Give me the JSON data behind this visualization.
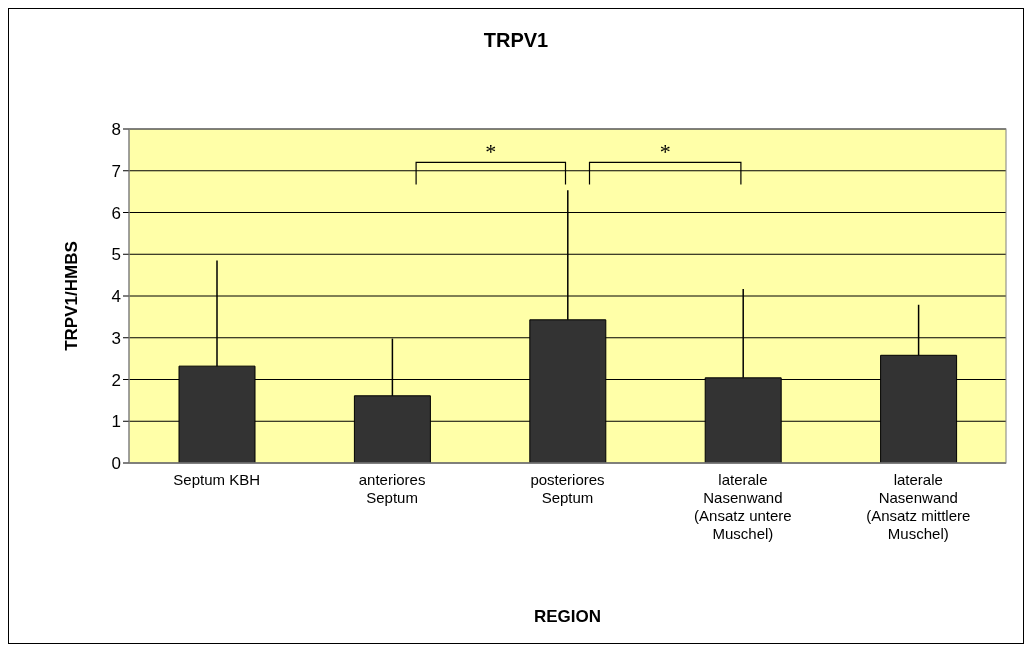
{
  "chart_data": {
    "type": "bar",
    "title": "TRPV1",
    "xlabel": "REGION",
    "ylabel": "TRPV1/HMBS",
    "categories": [
      "Septum KBH",
      "anteriores Septum",
      "posteriores Septum",
      "laterale Nasenwand (Ansatz untere Muschel)",
      "laterale Nasenwand (Ansatz mittlere Muschel)"
    ],
    "values": [
      2.32,
      1.61,
      3.43,
      2.04,
      2.58
    ],
    "errors": [
      [
        2.32,
        4.85
      ],
      [
        1.61,
        2.98
      ],
      [
        3.43,
        6.53
      ],
      [
        2.04,
        4.17
      ],
      [
        2.58,
        3.79
      ]
    ],
    "color": "#333333",
    "ylim": [
      0,
      8
    ],
    "yticks": [
      0,
      1,
      2,
      3,
      4,
      5,
      6,
      7,
      8
    ],
    "grid": "y",
    "annotations": [
      "*",
      "*"
    ]
  }
}
